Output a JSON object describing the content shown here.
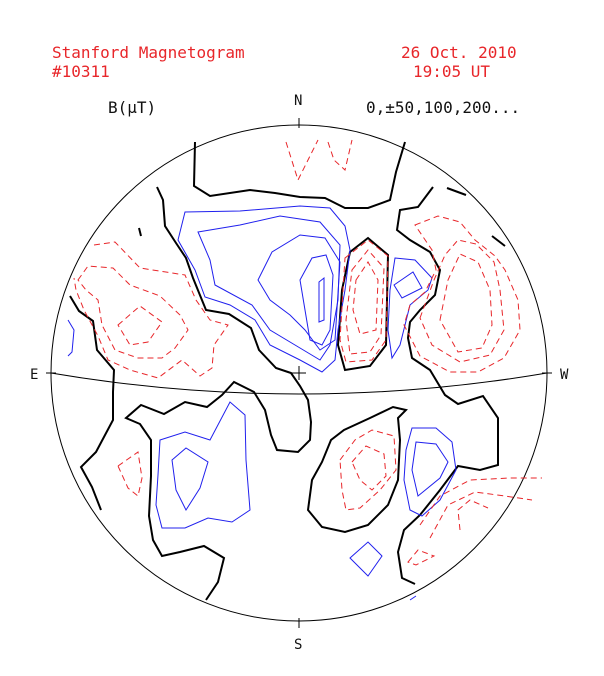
{
  "header": {
    "title": "Stanford Magnetogram",
    "rotation": "#10311",
    "date": "26 Oct. 2010",
    "time": "19:05 UT"
  },
  "legend": {
    "field_label": "B(μT)",
    "levels": "0,±50,100,200..."
  },
  "compass": {
    "north": "N",
    "south": "S",
    "east": "E",
    "west": "W"
  },
  "colors": {
    "text_accent": "#e8262a",
    "neutral_line": "#000000",
    "positive_contour": "#e8262a",
    "negative_contour": "#2020ee"
  }
}
